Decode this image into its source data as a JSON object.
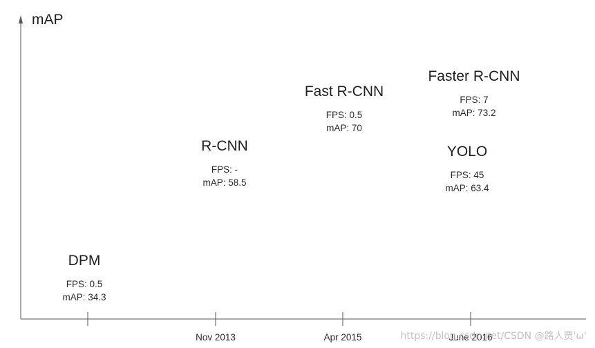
{
  "chart_data": {
    "type": "scatter",
    "title": "",
    "ylabel": "mAP",
    "xlabel": "",
    "x_tick_labels": [
      "",
      "Nov 2013",
      "Apr 2015",
      "June 2016"
    ],
    "points": [
      {
        "name": "DPM",
        "x_tick": 0,
        "fps_text": "FPS: 0.5",
        "map_text": "mAP: 34.3",
        "map": 34.3
      },
      {
        "name": "R-CNN",
        "x_tick": 1,
        "fps_text": "FPS: -",
        "map_text": "mAP: 58.5",
        "map": 58.5
      },
      {
        "name": "Fast R-CNN",
        "x_tick": 2,
        "fps_text": "FPS: 0.5",
        "map_text": "mAP: 70",
        "map": 70
      },
      {
        "name": "Faster R-CNN",
        "x_tick": 3,
        "fps_text": "FPS: 7",
        "map_text": "mAP: 73.2",
        "map": 73.2
      },
      {
        "name": "YOLO",
        "x_tick": 3,
        "fps_text": "FPS: 45",
        "map_text": "mAP: 63.4",
        "map": 63.4
      }
    ]
  },
  "watermark": "https://blog.csdn.net/CSDN @路人贾'ω'"
}
